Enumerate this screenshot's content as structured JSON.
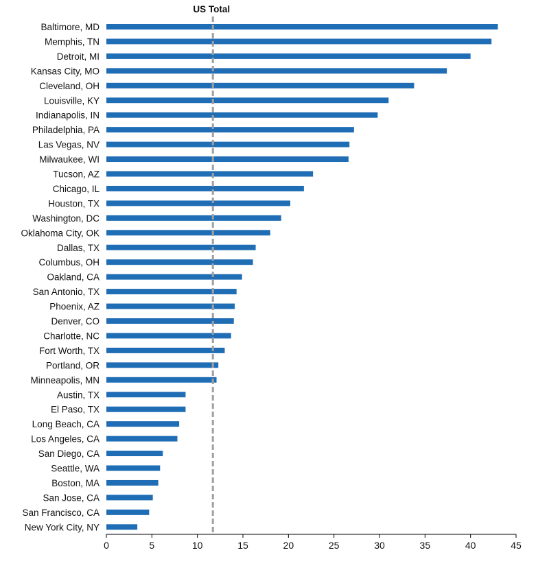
{
  "chart_data": {
    "type": "bar",
    "orientation": "horizontal",
    "categories": [
      "Baltimore, MD",
      "Memphis, TN",
      "Detroit, MI",
      "Kansas City, MO",
      "Cleveland, OH",
      "Louisville, KY",
      "Indianapolis, IN",
      "Philadelphia, PA",
      "Las Vegas, NV",
      "Milwaukee, WI",
      "Tucson, AZ",
      "Chicago, IL",
      "Houston, TX",
      "Washington, DC",
      "Oklahoma City, OK",
      "Dallas, TX",
      "Columbus, OH",
      "Oakland, CA",
      "San Antonio, TX",
      "Phoenix, AZ",
      "Denver, CO",
      "Charlotte, NC",
      "Fort Worth, TX",
      "Portland, OR",
      "Minneapolis, MN",
      "Austin, TX",
      "El Paso, TX",
      "Long Beach, CA",
      "Los Angeles, CA",
      "San Diego, CA",
      "Seattle, WA",
      "Boston, MA",
      "San Jose, CA",
      "San Francisco, CA",
      "New York City, NY"
    ],
    "values": [
      43.0,
      42.3,
      40.0,
      37.4,
      33.8,
      31.0,
      29.8,
      27.2,
      26.7,
      26.6,
      22.7,
      21.7,
      20.2,
      19.2,
      18.0,
      16.4,
      16.1,
      14.9,
      14.3,
      14.1,
      14.0,
      13.7,
      13.0,
      12.3,
      12.1,
      8.7,
      8.7,
      8.0,
      7.8,
      6.2,
      5.9,
      5.7,
      5.1,
      4.7,
      3.4
    ],
    "reference_line": {
      "label": "US Total",
      "value": 11.7
    },
    "xlim": [
      0,
      45
    ],
    "x_ticks": [
      "0",
      "5",
      "10",
      "15",
      "20",
      "25",
      "30",
      "35",
      "40",
      "45"
    ],
    "bar_color": "#1f6db5",
    "reference_color": "#a0a0a0",
    "grid": false,
    "title": "",
    "xlabel": "",
    "ylabel": ""
  }
}
